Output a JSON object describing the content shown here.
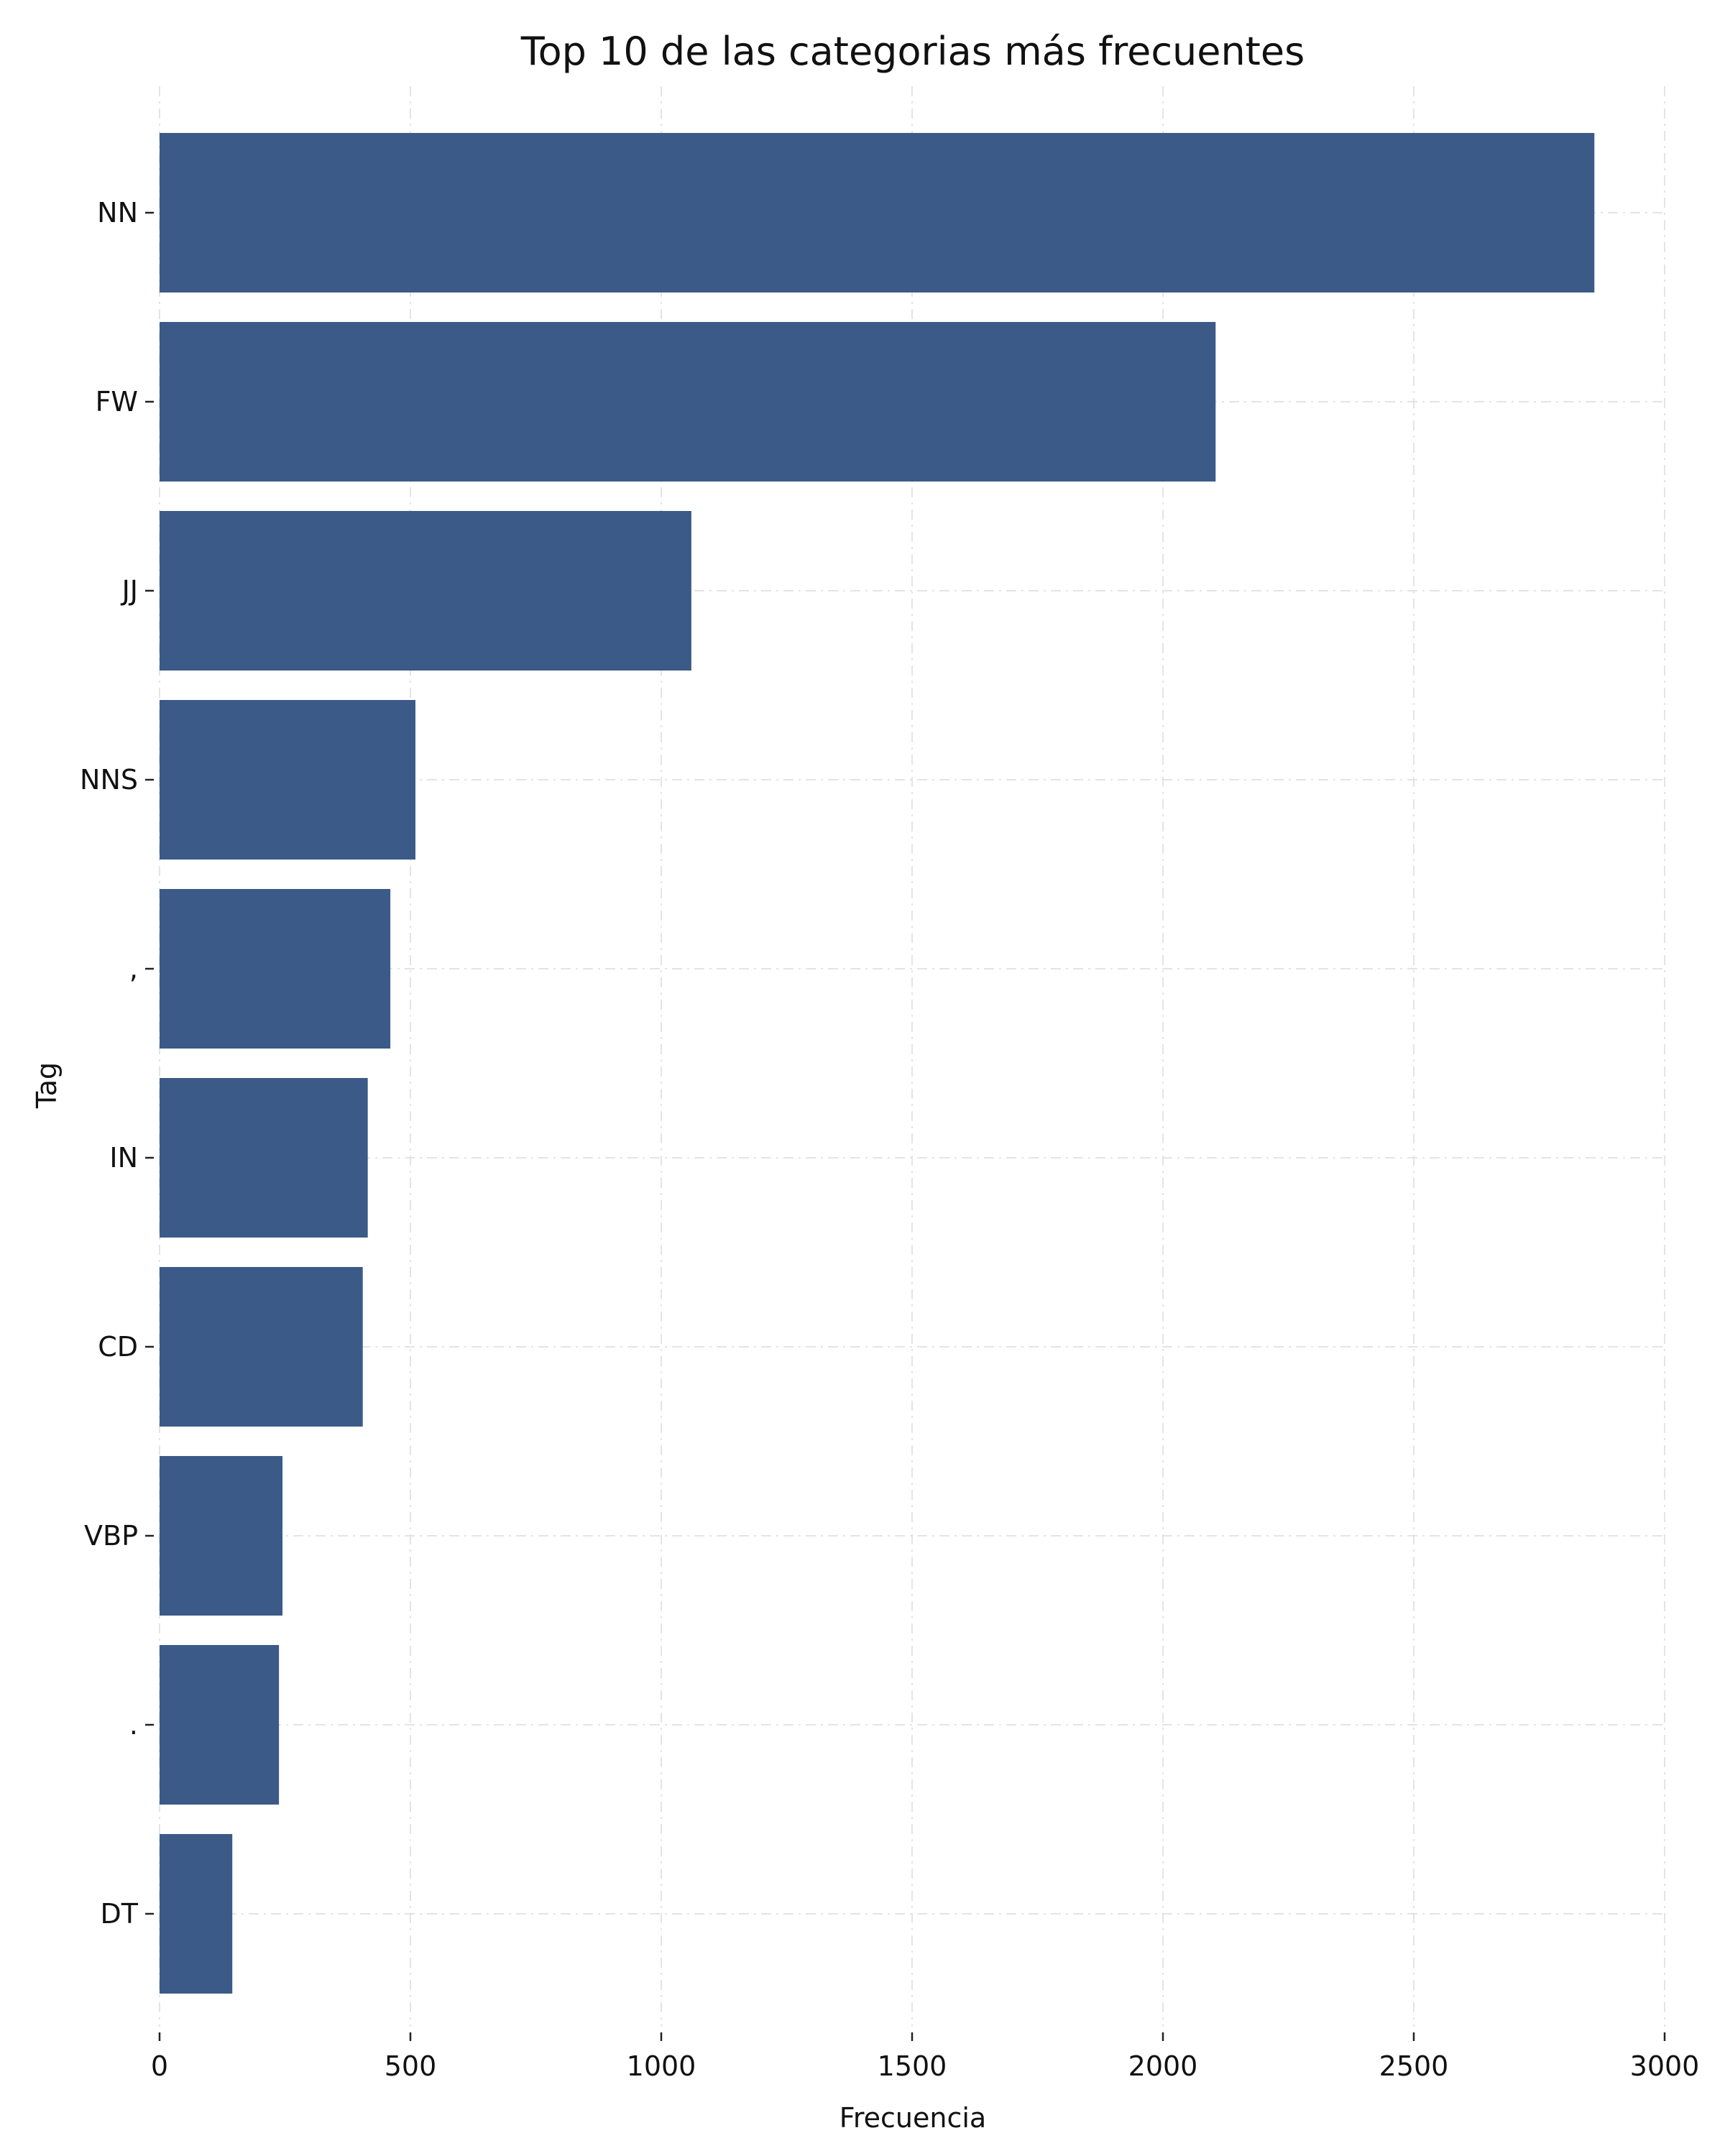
{
  "chart_data": {
    "type": "bar",
    "orientation": "horizontal",
    "title": "Top 10 de las categorias más frecuentes",
    "xlabel": "Frecuencia",
    "ylabel": "Tag",
    "categories": [
      "NN",
      "FW",
      "JJ",
      "NNS",
      ",",
      "IN",
      "CD",
      "VBP",
      ".",
      "DT"
    ],
    "values": [
      2860,
      2105,
      1060,
      510,
      460,
      415,
      405,
      245,
      238,
      145
    ],
    "xlim": [
      0,
      3000
    ],
    "xticks": [
      "0",
      "500",
      "1000",
      "1500",
      "2000",
      "2500",
      "3000"
    ],
    "grid": true,
    "bar_color": "#3b5a87"
  }
}
